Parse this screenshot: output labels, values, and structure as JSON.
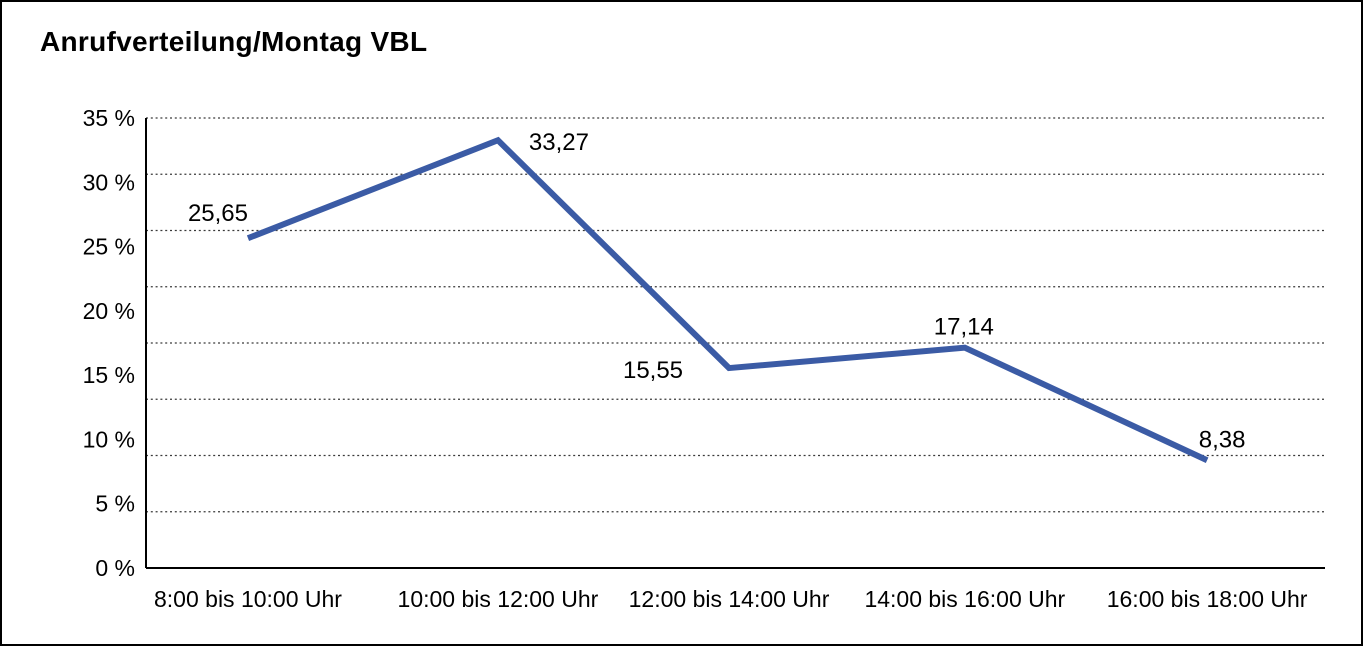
{
  "title": "Anrufverteilung/Montag VBL",
  "colors": {
    "line": "#3B5BA5",
    "text": "#000000",
    "grid": "#3a3a3a",
    "axis": "#000000",
    "background": "#ffffff",
    "border": "#000000"
  },
  "chart_data": {
    "type": "line",
    "title": "Anrufverteilung/Montag VBL",
    "categories": [
      "8:00 bis 10:00 Uhr",
      "10:00 bis 12:00 Uhr",
      "12:00 bis 14:00 Uhr",
      "14:00 bis 16:00 Uhr",
      "16:00 bis 18:00 Uhr"
    ],
    "values": [
      25.65,
      33.27,
      15.55,
      17.14,
      8.38
    ],
    "point_labels": [
      "25,65",
      "33,27",
      "15,55",
      "17,14",
      "8,38"
    ],
    "y_ticks": [
      "35 %",
      "30 %",
      "25 %",
      "20 %",
      "15 %",
      "10 %",
      "5 %",
      "0 %"
    ],
    "ylim": [
      0,
      35
    ],
    "xlabel": "",
    "ylabel": "",
    "grid": "horizontal-dotted",
    "horizontal_gridlines_above_axis": 8,
    "legend": "none"
  }
}
